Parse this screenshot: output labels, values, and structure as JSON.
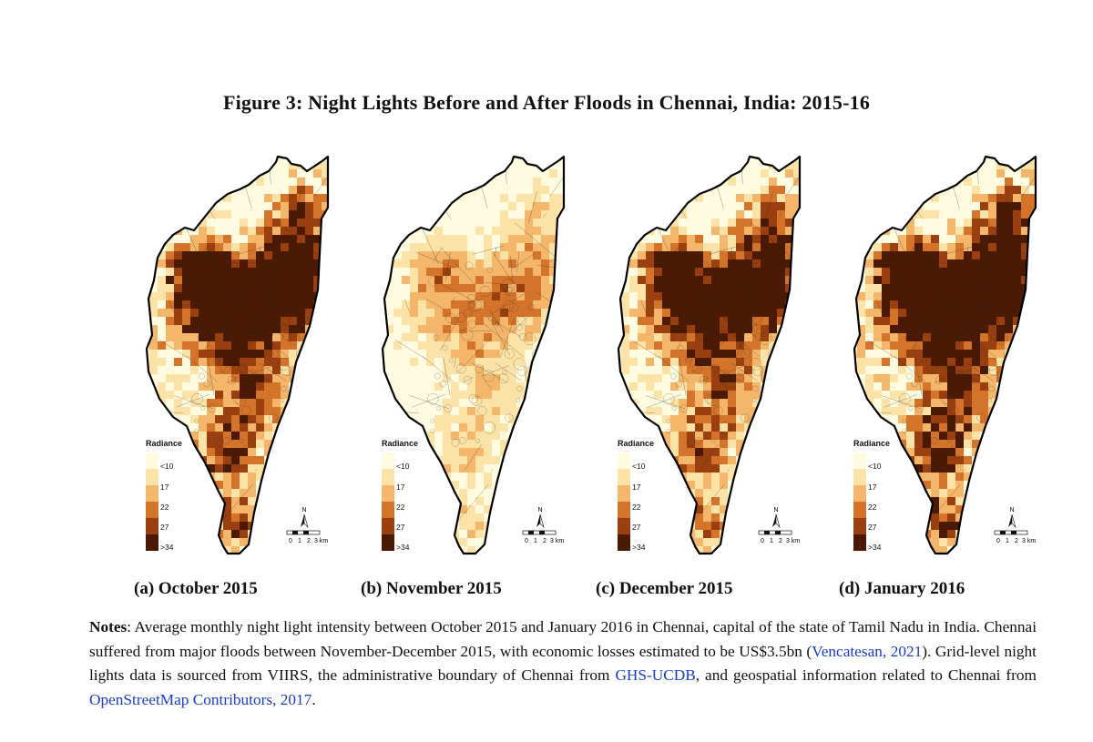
{
  "title": "Figure 3: Night Lights Before and After Floods in Chennai, India: 2015-16",
  "legend": {
    "title": "Radiance",
    "labels": [
      "<10",
      "17",
      "22",
      "27",
      ">34"
    ],
    "colors": [
      "#fffbe0",
      "#fbe3a8",
      "#f4b66a",
      "#d4742a",
      "#9a3f10",
      "#4a1a05"
    ]
  },
  "scale": {
    "north": "N",
    "ticks": [
      "0",
      "1",
      "2",
      "3 km"
    ]
  },
  "panels": [
    {
      "caption": "(a) October 2015",
      "intensity": 0.72
    },
    {
      "caption": "(b) November 2015",
      "intensity": 0.3
    },
    {
      "caption": "(c) December 2015",
      "intensity": 0.62
    },
    {
      "caption": "(d) January 2016",
      "intensity": 0.8
    }
  ],
  "notes": {
    "label": "Notes",
    "text1": ": Average monthly night light intensity between October 2015 and January 2016 in Chennai, capital of the state of Tamil Nadu in India. Chennai suffered from major floods between November-December 2015, with economic losses estimated to be US$3.5bn (",
    "link1": "Vencatesan, 2021",
    "text2": "). Grid-level night lights data is sourced from VIIRS, the administrative boundary of Chennai from ",
    "link2": "GHS-UCDB",
    "text3": ", and geospatial information related to Chennai from ",
    "link3": "OpenStreetMap Contributors, 2017",
    "text4": "."
  }
}
